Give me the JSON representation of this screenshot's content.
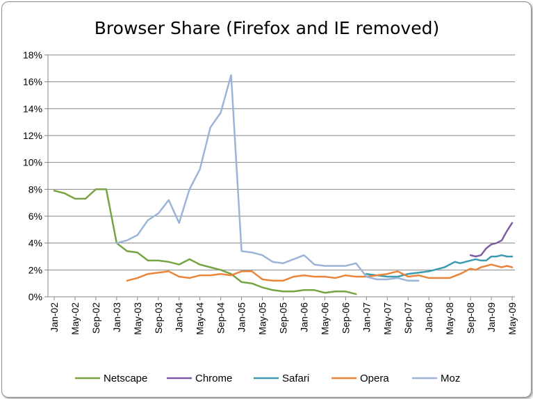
{
  "chart_data": {
    "type": "line",
    "title": "Browser Share (Firefox and IE removed)",
    "xlabel": "",
    "ylabel": "",
    "ylim": [
      0,
      18
    ],
    "yticks": [
      "0%",
      "2%",
      "4%",
      "6%",
      "8%",
      "10%",
      "12%",
      "14%",
      "16%",
      "18%"
    ],
    "x_range": [
      "Jan-02",
      "May-09"
    ],
    "x_ticks": [
      "Jan-02",
      "May-02",
      "Sep-02",
      "Jan-03",
      "May-03",
      "Sep-03",
      "Jan-04",
      "May-04",
      "Sep-04",
      "Jan-05",
      "May-05",
      "Sep-05",
      "Jan-06",
      "May-06",
      "Sep-06",
      "Jan-07",
      "May-07",
      "Sep-07",
      "Jan-08",
      "May-08",
      "Sep-08",
      "Jan-09",
      "May-09"
    ],
    "grid": "horizontal",
    "legend": "bottom",
    "series": [
      {
        "name": "Netscape",
        "color": "#77a442",
        "points": [
          [
            "Jan-02",
            7.9
          ],
          [
            "Mar-02",
            7.7
          ],
          [
            "May-02",
            7.3
          ],
          [
            "Jul-02",
            7.3
          ],
          [
            "Sep-02",
            8.0
          ],
          [
            "Nov-02",
            8.0
          ],
          [
            "Jan-03",
            4.0
          ],
          [
            "Mar-03",
            3.4
          ],
          [
            "May-03",
            3.3
          ],
          [
            "Jul-03",
            2.7
          ],
          [
            "Sep-03",
            2.7
          ],
          [
            "Nov-03",
            2.6
          ],
          [
            "Jan-04",
            2.4
          ],
          [
            "Mar-04",
            2.8
          ],
          [
            "May-04",
            2.4
          ],
          [
            "Jul-04",
            2.2
          ],
          [
            "Sep-04",
            2.0
          ],
          [
            "Nov-04",
            1.7
          ],
          [
            "Jan-05",
            1.1
          ],
          [
            "Mar-05",
            1.0
          ],
          [
            "May-05",
            0.7
          ],
          [
            "Jul-05",
            0.5
          ],
          [
            "Sep-05",
            0.4
          ],
          [
            "Nov-05",
            0.4
          ],
          [
            "Jan-06",
            0.5
          ],
          [
            "Mar-06",
            0.5
          ],
          [
            "May-06",
            0.3
          ],
          [
            "Jul-06",
            0.4
          ],
          [
            "Sep-06",
            0.4
          ],
          [
            "Nov-06",
            0.2
          ]
        ]
      },
      {
        "name": "Chrome",
        "color": "#7d5ca1",
        "points": [
          [
            "Sep-08",
            3.1
          ],
          [
            "Oct-08",
            3.0
          ],
          [
            "Nov-08",
            3.1
          ],
          [
            "Dec-08",
            3.6
          ],
          [
            "Jan-09",
            3.9
          ],
          [
            "Feb-09",
            4.0
          ],
          [
            "Mar-09",
            4.2
          ],
          [
            "Apr-09",
            4.9
          ],
          [
            "May-09",
            5.5
          ]
        ]
      },
      {
        "name": "Safari",
        "color": "#3a9bb0",
        "points": [
          [
            "Jan-07",
            1.7
          ],
          [
            "Mar-07",
            1.6
          ],
          [
            "May-07",
            1.5
          ],
          [
            "Jul-07",
            1.5
          ],
          [
            "Sep-07",
            1.7
          ],
          [
            "Nov-07",
            1.8
          ],
          [
            "Jan-08",
            1.9
          ],
          [
            "Mar-08",
            2.1
          ],
          [
            "Apr-08",
            2.2
          ],
          [
            "Jun-08",
            2.6
          ],
          [
            "Jul-08",
            2.5
          ],
          [
            "Sep-08",
            2.7
          ],
          [
            "Oct-08",
            2.8
          ],
          [
            "Nov-08",
            2.7
          ],
          [
            "Dec-08",
            2.7
          ],
          [
            "Jan-09",
            3.0
          ],
          [
            "Feb-09",
            3.0
          ],
          [
            "Mar-09",
            3.1
          ],
          [
            "Apr-09",
            3.0
          ],
          [
            "May-09",
            3.0
          ]
        ]
      },
      {
        "name": "Opera",
        "color": "#e8853b",
        "points": [
          [
            "Mar-03",
            1.2
          ],
          [
            "May-03",
            1.4
          ],
          [
            "Jul-03",
            1.7
          ],
          [
            "Sep-03",
            1.8
          ],
          [
            "Nov-03",
            1.9
          ],
          [
            "Jan-04",
            1.5
          ],
          [
            "Mar-04",
            1.4
          ],
          [
            "May-04",
            1.6
          ],
          [
            "Jul-04",
            1.6
          ],
          [
            "Sep-04",
            1.7
          ],
          [
            "Nov-04",
            1.6
          ],
          [
            "Jan-05",
            1.9
          ],
          [
            "Mar-05",
            1.9
          ],
          [
            "May-05",
            1.3
          ],
          [
            "Jul-05",
            1.2
          ],
          [
            "Sep-05",
            1.2
          ],
          [
            "Nov-05",
            1.5
          ],
          [
            "Jan-06",
            1.6
          ],
          [
            "Mar-06",
            1.5
          ],
          [
            "May-06",
            1.5
          ],
          [
            "Jul-06",
            1.4
          ],
          [
            "Sep-06",
            1.6
          ],
          [
            "Nov-06",
            1.5
          ],
          [
            "Jan-07",
            1.5
          ],
          [
            "Mar-07",
            1.6
          ],
          [
            "May-07",
            1.7
          ],
          [
            "Jul-07",
            1.9
          ],
          [
            "Sep-07",
            1.5
          ],
          [
            "Nov-07",
            1.6
          ],
          [
            "Jan-08",
            1.4
          ],
          [
            "Mar-08",
            1.4
          ],
          [
            "May-08",
            1.4
          ],
          [
            "Jul-08",
            1.7
          ],
          [
            "Sep-08",
            2.1
          ],
          [
            "Oct-08",
            2.0
          ],
          [
            "Nov-08",
            2.2
          ],
          [
            "Jan-09",
            2.4
          ],
          [
            "Mar-09",
            2.2
          ],
          [
            "Apr-09",
            2.3
          ],
          [
            "May-09",
            2.2
          ]
        ]
      },
      {
        "name": "Moz",
        "color": "#9cb4d8",
        "points": [
          [
            "Jan-03",
            4.0
          ],
          [
            "Mar-03",
            4.2
          ],
          [
            "May-03",
            4.6
          ],
          [
            "Jul-03",
            5.7
          ],
          [
            "Sep-03",
            6.2
          ],
          [
            "Nov-03",
            7.2
          ],
          [
            "Jan-04",
            5.5
          ],
          [
            "Mar-04",
            8.0
          ],
          [
            "May-04",
            9.5
          ],
          [
            "Jul-04",
            12.6
          ],
          [
            "Sep-04",
            13.7
          ],
          [
            "Nov-04",
            16.5
          ],
          [
            "Jan-05",
            3.4
          ],
          [
            "Mar-05",
            3.3
          ],
          [
            "May-05",
            3.1
          ],
          [
            "Jul-05",
            2.6
          ],
          [
            "Sep-05",
            2.5
          ],
          [
            "Nov-05",
            2.8
          ],
          [
            "Jan-06",
            3.1
          ],
          [
            "Mar-06",
            2.4
          ],
          [
            "May-06",
            2.3
          ],
          [
            "Jul-06",
            2.3
          ],
          [
            "Sep-06",
            2.3
          ],
          [
            "Nov-06",
            2.5
          ],
          [
            "Jan-07",
            1.5
          ],
          [
            "Mar-07",
            1.3
          ],
          [
            "May-07",
            1.3
          ],
          [
            "Jul-07",
            1.4
          ],
          [
            "Sep-07",
            1.2
          ],
          [
            "Nov-07",
            1.2
          ]
        ]
      }
    ]
  }
}
